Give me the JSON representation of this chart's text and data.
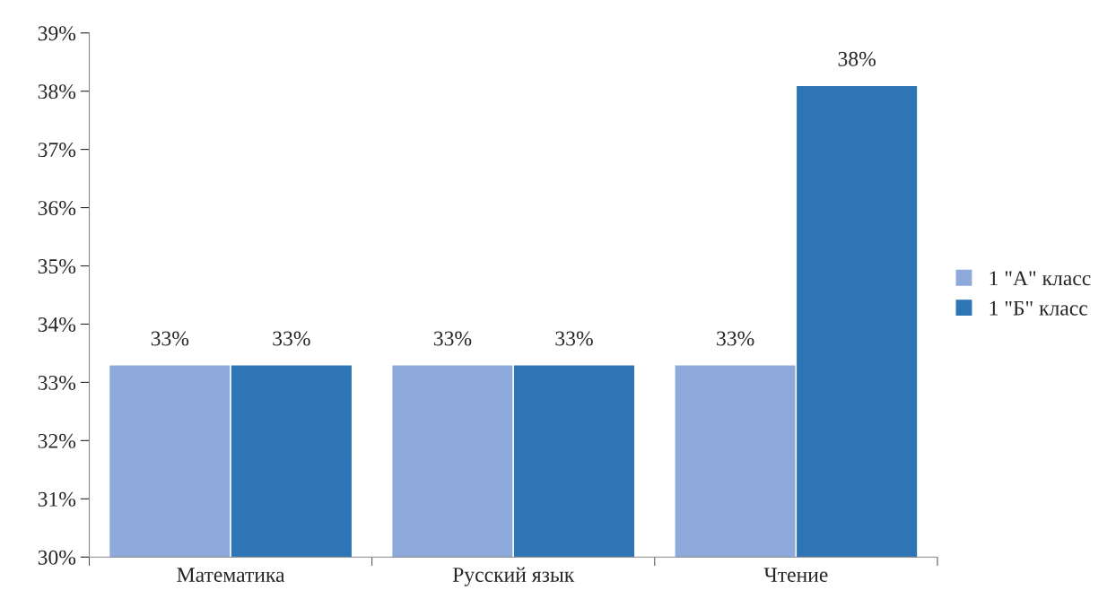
{
  "chart_data": {
    "type": "bar",
    "categories": [
      "Математика",
      "Русский язык",
      "Чтение"
    ],
    "series": [
      {
        "name": "1 \"А\" класс",
        "color": "#8eaadb",
        "values": [
          33.3,
          33.3,
          33.3
        ],
        "value_labels": [
          "33%",
          "33%",
          "33%"
        ]
      },
      {
        "name": "1 \"Б\" класс",
        "color": "#2e75b6",
        "values": [
          33.3,
          33.3,
          38.1
        ],
        "value_labels": [
          "33%",
          "33%",
          "38%"
        ]
      }
    ],
    "ylim": [
      30,
      39
    ],
    "yticks": [
      {
        "value": 30,
        "label": "30%"
      },
      {
        "value": 31,
        "label": "31%"
      },
      {
        "value": 32,
        "label": "32%"
      },
      {
        "value": 33,
        "label": "33%"
      },
      {
        "value": 34,
        "label": "34%"
      },
      {
        "value": 35,
        "label": "35%"
      },
      {
        "value": 36,
        "label": "36%"
      },
      {
        "value": 37,
        "label": "37%"
      },
      {
        "value": 38,
        "label": "38%"
      },
      {
        "value": 39,
        "label": "39%"
      }
    ],
    "grid": false,
    "legend": "right"
  }
}
